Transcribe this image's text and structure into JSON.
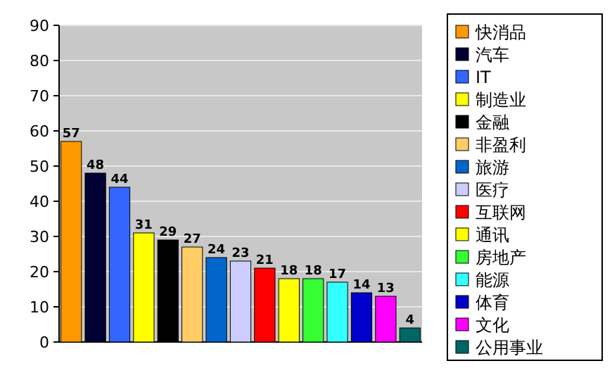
{
  "chart_data": {
    "type": "bar",
    "categories": [
      null,
      null,
      null,
      null,
      null,
      null,
      null,
      null,
      null,
      null,
      null,
      null,
      null,
      null,
      null
    ],
    "series": [
      {
        "name": "快消品",
        "color": "#ff9900",
        "values": [
          57,
          null,
          null,
          null,
          null,
          null,
          null,
          null,
          null,
          null,
          null,
          null,
          null,
          null,
          null
        ]
      },
      {
        "name": "汽车",
        "color": "#000033",
        "values": [
          null,
          48,
          null,
          null,
          null,
          null,
          null,
          null,
          null,
          null,
          null,
          null,
          null,
          null,
          null
        ]
      },
      {
        "name": "IT",
        "color": "#3366ff",
        "values": [
          null,
          null,
          44,
          null,
          null,
          null,
          null,
          null,
          null,
          null,
          null,
          null,
          null,
          null,
          null
        ]
      },
      {
        "name": "制造业",
        "color": "#ffff00",
        "values": [
          null,
          null,
          null,
          31,
          null,
          null,
          null,
          null,
          null,
          null,
          null,
          null,
          null,
          null,
          null
        ]
      },
      {
        "name": "金融",
        "color": "#000000",
        "values": [
          null,
          null,
          null,
          null,
          29,
          null,
          null,
          null,
          null,
          null,
          null,
          null,
          null,
          null,
          null
        ]
      },
      {
        "name": "非盈利",
        "color": "#ffcc66",
        "values": [
          null,
          null,
          null,
          null,
          null,
          27,
          null,
          null,
          null,
          null,
          null,
          null,
          null,
          null,
          null
        ]
      },
      {
        "name": "旅游",
        "color": "#0066cc",
        "values": [
          null,
          null,
          null,
          null,
          null,
          null,
          24,
          null,
          null,
          null,
          null,
          null,
          null,
          null,
          null
        ]
      },
      {
        "name": "医疗",
        "color": "#ccccff",
        "values": [
          null,
          null,
          null,
          null,
          null,
          null,
          null,
          23,
          null,
          null,
          null,
          null,
          null,
          null,
          null
        ]
      },
      {
        "name": "互联网",
        "color": "#ff0000",
        "values": [
          null,
          null,
          null,
          null,
          null,
          null,
          null,
          null,
          21,
          null,
          null,
          null,
          null,
          null,
          null
        ]
      },
      {
        "name": "通讯",
        "color": "#ffff00",
        "values": [
          null,
          null,
          null,
          null,
          null,
          null,
          null,
          null,
          null,
          18,
          null,
          null,
          null,
          null,
          null
        ]
      },
      {
        "name": "房地产",
        "color": "#33ff33",
        "values": [
          null,
          null,
          null,
          null,
          null,
          null,
          null,
          null,
          null,
          null,
          18,
          null,
          null,
          null,
          null
        ]
      },
      {
        "name": "能源",
        "color": "#33ffff",
        "values": [
          null,
          null,
          null,
          null,
          null,
          null,
          null,
          null,
          null,
          null,
          null,
          17,
          null,
          null,
          null
        ]
      },
      {
        "name": "体育",
        "color": "#0000cc",
        "values": [
          null,
          null,
          null,
          null,
          null,
          null,
          null,
          null,
          null,
          null,
          null,
          null,
          14,
          null,
          null
        ]
      },
      {
        "name": "文化",
        "color": "#ff00ff",
        "values": [
          null,
          null,
          null,
          null,
          null,
          null,
          null,
          null,
          null,
          null,
          null,
          null,
          null,
          13,
          null
        ]
      },
      {
        "name": "公用事业",
        "color": "#006666",
        "values": [
          null,
          null,
          null,
          null,
          null,
          null,
          null,
          null,
          null,
          null,
          null,
          null,
          null,
          null,
          4
        ]
      }
    ],
    "ylim": [
      0,
      90
    ],
    "yticks": [
      0,
      10,
      20,
      30,
      40,
      50,
      60,
      70,
      80,
      90
    ],
    "grid": "y",
    "legend": "right",
    "data_labels": true
  }
}
